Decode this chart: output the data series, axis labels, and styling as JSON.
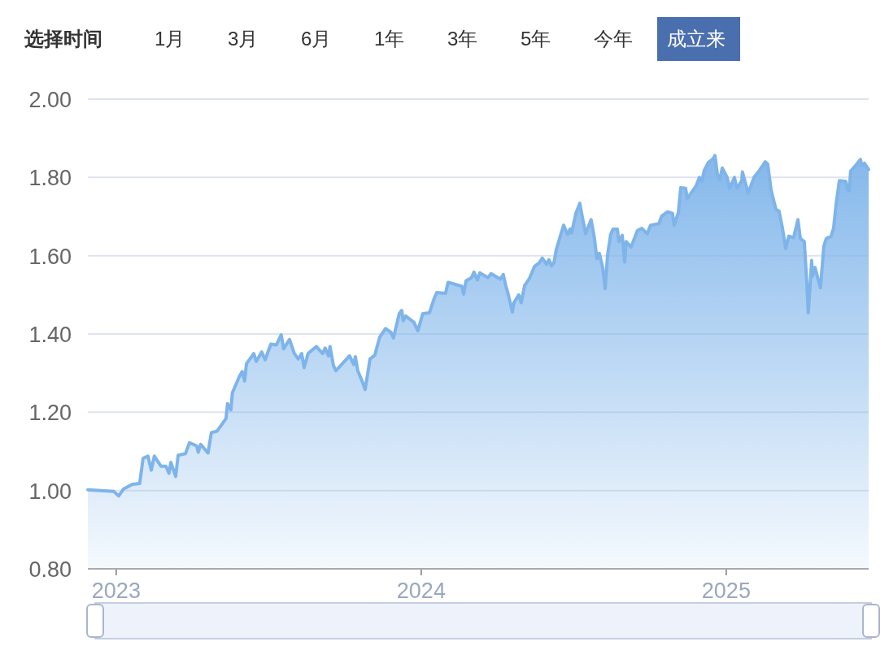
{
  "chart_data": [
    {
      "type": "other",
      "title": "选择时间",
      "categories": [
        "1月",
        "3月",
        "6月",
        "1年",
        "3年",
        "5年",
        "今年",
        "成立来"
      ],
      "colors": [
        null,
        null,
        null,
        null,
        null,
        null,
        null,
        "#4a6faf"
      ]
    },
    {
      "type": "area",
      "xlim": [
        2022.907,
        2025.467
      ],
      "ylim": [
        0.8,
        2.0
      ],
      "grid": "y",
      "xticks": [
        2023,
        2024,
        2025
      ],
      "yticks": [
        {
          "value": 0.8,
          "label": "0.80"
        },
        {
          "value": 1.0,
          "label": "1.00"
        },
        {
          "value": 1.2,
          "label": "1.20"
        },
        {
          "value": 1.4,
          "label": "1.40"
        },
        {
          "value": 1.6,
          "label": "1.60"
        },
        {
          "value": 1.8,
          "label": "1.80"
        },
        {
          "value": 2.0,
          "label": "2.00"
        }
      ],
      "series": [
        {
          "color": "#7eb4ea",
          "x": [
            2022.907,
            2022.992,
            2023.008,
            2023.024,
            2023.053,
            2023.077,
            2023.088,
            2023.104,
            2023.115,
            2023.125,
            2023.147,
            2023.163,
            2023.173,
            2023.179,
            2023.195,
            2023.203,
            2023.227,
            2023.24,
            2023.264,
            2023.269,
            2023.277,
            2023.301,
            2023.312,
            2023.331,
            2023.36,
            2023.365,
            2023.376,
            2023.381,
            2023.403,
            2023.413,
            2023.421,
            2023.427,
            2023.451,
            2023.459,
            2023.477,
            2023.488,
            2023.507,
            2023.525,
            2023.541,
            2023.549,
            2023.568,
            2023.584,
            2023.597,
            2023.608,
            2023.616,
            2023.629,
            2023.656,
            2023.677,
            2023.685,
            2023.696,
            2023.701,
            2023.712,
            2023.72,
            2023.765,
            2023.779,
            2023.784,
            2023.792,
            2023.808,
            2023.816,
            2023.824,
            2023.832,
            2023.848,
            2023.864,
            2023.883,
            2023.901,
            2023.909,
            2023.928,
            2023.936,
            2023.941,
            2023.949,
            2023.976,
            2023.989,
            2024.005,
            2024.027,
            2024.043,
            2024.051,
            2024.08,
            2024.088,
            2024.133,
            2024.139,
            2024.147,
            2024.165,
            2024.173,
            2024.184,
            2024.192,
            2024.219,
            2024.229,
            2024.259,
            2024.269,
            2024.277,
            2024.285,
            2024.299,
            2024.304,
            2024.32,
            2024.328,
            2024.339,
            2024.355,
            2024.371,
            2024.387,
            2024.397,
            2024.411,
            2024.419,
            2024.427,
            2024.435,
            2024.443,
            2024.459,
            2024.467,
            2024.48,
            2024.488,
            2024.493,
            2024.507,
            2024.52,
            2024.528,
            2024.539,
            2024.557,
            2024.568,
            2024.576,
            2024.584,
            2024.595,
            2024.603,
            2024.611,
            2024.621,
            2024.629,
            2024.643,
            2024.648,
            2024.659,
            2024.667,
            2024.672,
            2024.688,
            2024.709,
            2024.723,
            2024.741,
            2024.752,
            2024.779,
            2024.789,
            2024.808,
            2024.824,
            2024.829,
            2024.843,
            2024.851,
            2024.867,
            2024.872,
            2024.901,
            2024.912,
            2024.92,
            2024.928,
            2024.941,
            2024.957,
            2024.963,
            2024.971,
            2024.979,
            2024.987,
            2025.003,
            2025.011,
            2025.027,
            2025.035,
            2025.051,
            2025.053,
            2025.072,
            2025.091,
            2025.109,
            2025.128,
            2025.136,
            2025.147,
            2025.163,
            2025.173,
            2025.184,
            2025.195,
            2025.205,
            2025.221,
            2025.235,
            2025.243,
            2025.256,
            2025.264,
            2025.269,
            2025.275,
            2025.28,
            2025.283,
            2025.291,
            2025.301,
            2025.309,
            2025.32,
            2025.328,
            2025.344,
            2025.352,
            2025.36,
            2025.371,
            2025.392,
            2025.397,
            2025.403,
            2025.408,
            2025.424,
            2025.44,
            2025.445,
            2025.453,
            2025.467
          ],
          "values": [
            1.002,
            0.998,
            0.986,
            1.004,
            1.016,
            1.018,
            1.082,
            1.088,
            1.052,
            1.088,
            1.062,
            1.062,
            1.044,
            1.072,
            1.036,
            1.09,
            1.094,
            1.122,
            1.114,
            1.098,
            1.118,
            1.096,
            1.148,
            1.152,
            1.184,
            1.222,
            1.206,
            1.25,
            1.29,
            1.304,
            1.28,
            1.324,
            1.35,
            1.33,
            1.354,
            1.334,
            1.374,
            1.372,
            1.398,
            1.362,
            1.386,
            1.35,
            1.336,
            1.35,
            1.314,
            1.35,
            1.368,
            1.35,
            1.364,
            1.344,
            1.368,
            1.32,
            1.306,
            1.344,
            1.322,
            1.342,
            1.306,
            1.276,
            1.258,
            1.296,
            1.336,
            1.346,
            1.392,
            1.414,
            1.404,
            1.39,
            1.452,
            1.46,
            1.434,
            1.446,
            1.43,
            1.408,
            1.452,
            1.454,
            1.492,
            1.506,
            1.504,
            1.532,
            1.522,
            1.502,
            1.536,
            1.544,
            1.558,
            1.538,
            1.556,
            1.544,
            1.554,
            1.54,
            1.552,
            1.524,
            1.502,
            1.456,
            1.48,
            1.5,
            1.48,
            1.524,
            1.542,
            1.572,
            1.582,
            1.594,
            1.578,
            1.59,
            1.574,
            1.582,
            1.616,
            1.658,
            1.678,
            1.654,
            1.668,
            1.658,
            1.708,
            1.734,
            1.7,
            1.656,
            1.692,
            1.644,
            1.592,
            1.606,
            1.57,
            1.516,
            1.602,
            1.654,
            1.668,
            1.668,
            1.636,
            1.652,
            1.584,
            1.636,
            1.622,
            1.664,
            1.67,
            1.656,
            1.678,
            1.682,
            1.702,
            1.712,
            1.708,
            1.678,
            1.71,
            1.774,
            1.772,
            1.746,
            1.778,
            1.8,
            1.79,
            1.818,
            1.838,
            1.848,
            1.856,
            1.808,
            1.794,
            1.824,
            1.8,
            1.772,
            1.8,
            1.772,
            1.792,
            1.814,
            1.76,
            1.8,
            1.818,
            1.84,
            1.834,
            1.768,
            1.718,
            1.714,
            1.672,
            1.618,
            1.65,
            1.646,
            1.692,
            1.644,
            1.636,
            1.534,
            1.454,
            1.524,
            1.588,
            1.548,
            1.57,
            1.54,
            1.518,
            1.624,
            1.644,
            1.65,
            1.67,
            1.73,
            1.792,
            1.79,
            1.77,
            1.766,
            1.816,
            1.83,
            1.846,
            1.83,
            1.836,
            1.82
          ]
        }
      ]
    }
  ]
}
